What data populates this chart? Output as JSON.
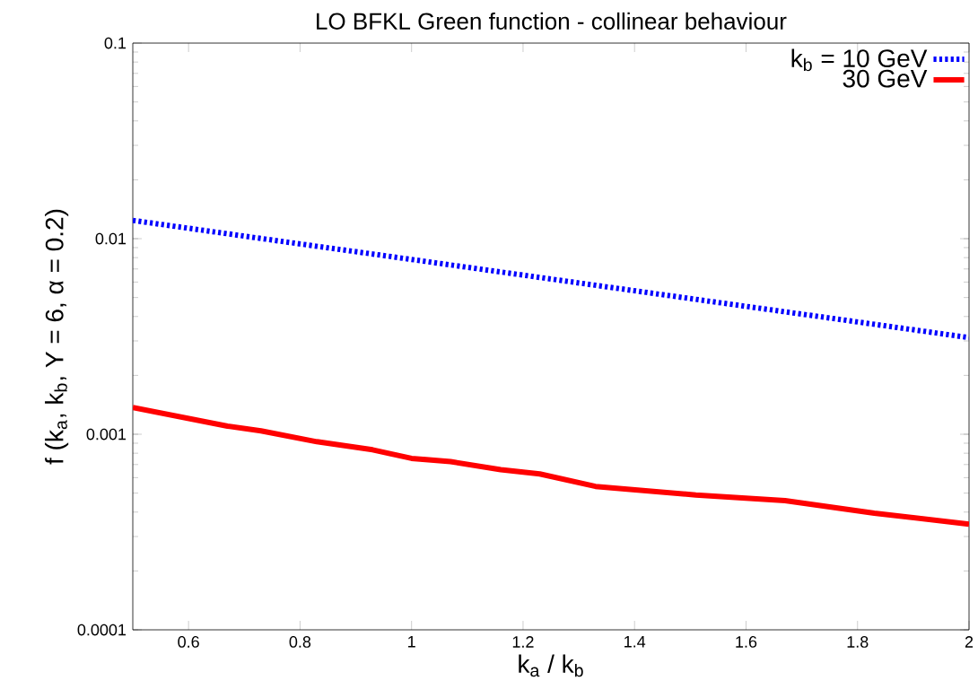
{
  "chart_data": {
    "type": "line",
    "title": "LO BFKL Green function - collinear behaviour",
    "xlabel": "k$_{a}$ / k$_{b}$",
    "ylabel": "f (k$_{a}$, k$_{b}$, Y = 6, α = 0.2)",
    "log": "y",
    "legend": "top right",
    "grid": false,
    "xlim": [
      0.5,
      2
    ],
    "xticks": [
      0.6,
      0.8,
      1,
      1.2,
      1.4,
      1.6,
      1.8,
      2
    ],
    "ylim": [
      0.0001,
      0.1
    ],
    "yticks": [
      0.0001,
      0.001,
      0.01,
      0.1
    ],
    "series": [
      {
        "name": "k$_{b}$ = 10 GeV",
        "color": "#0000ff",
        "line_style": "dotted",
        "x": [
          0.5,
          0.75,
          1,
          1.25,
          1.5,
          1.75,
          2
        ],
        "values": [
          0.0124,
          0.00984,
          0.00783,
          0.00622,
          0.00494,
          0.00393,
          0.00312
        ]
      },
      {
        "name": "30 GeV",
        "color": "#ff0000",
        "line_style": "solid",
        "x": [
          0.5,
          0.67,
          0.73,
          0.83,
          0.93,
          1.0,
          1.07,
          1.16,
          1.23,
          1.33,
          1.51,
          1.67,
          1.83,
          2
        ],
        "values": [
          0.00137,
          0.0011,
          0.00104,
          0.000916,
          0.000833,
          0.000753,
          0.000725,
          0.000659,
          0.000627,
          0.000541,
          0.000489,
          0.000458,
          0.000395,
          0.000347
        ]
      }
    ]
  }
}
